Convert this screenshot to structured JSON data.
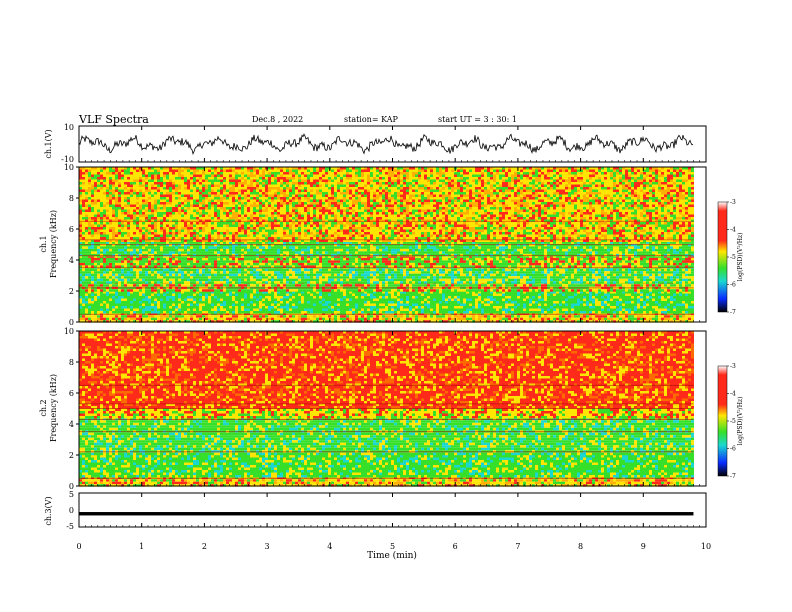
{
  "header": {
    "title": "VLF Spectra",
    "date": "Dec.8 , 2022",
    "station": "station= KAP",
    "start": "start UT = 3 : 30: 1"
  },
  "chart_data": [
    {
      "type": "line",
      "name": "ch1-waveform",
      "ylabel": "ch.1(V)",
      "ylim": [
        -10,
        10
      ],
      "yticks": [
        "10",
        "-10"
      ],
      "xlim": [
        0,
        10
      ],
      "note": "dense oscillating signal from t=0 to ~9.8 min"
    },
    {
      "type": "heatmap",
      "name": "ch1-spectrogram",
      "ylabel_top": "ch.1",
      "ylabel": "Frequency (kHz)",
      "ylim": [
        0,
        10
      ],
      "yticks": [
        "0",
        "2",
        "4",
        "6",
        "8",
        "10"
      ],
      "colorbar": {
        "ticks": [
          "-3",
          "-4",
          "-5",
          "-6",
          "-7"
        ],
        "label": "log(PSD)(V²/Hz)"
      },
      "bands": [
        {
          "from": 0,
          "to": 0.6,
          "level": "yellow-red"
        },
        {
          "from": 0.6,
          "to": 2.0,
          "level": "green"
        },
        {
          "from": 2.0,
          "to": 2.6,
          "level": "green-yellow"
        },
        {
          "from": 2.6,
          "to": 3.6,
          "level": "green-cyan"
        },
        {
          "from": 3.6,
          "to": 4.3,
          "level": "green-yellow"
        },
        {
          "from": 4.3,
          "to": 5.2,
          "level": "green"
        },
        {
          "from": 5.2,
          "to": 10,
          "level": "yellow-red"
        }
      ]
    },
    {
      "type": "heatmap",
      "name": "ch2-spectrogram",
      "ylabel_top": "ch.2",
      "ylabel": "Frequency (kHz)",
      "ylim": [
        0,
        10
      ],
      "yticks": [
        "0",
        "2",
        "4",
        "6",
        "8",
        "10"
      ],
      "colorbar": {
        "ticks": [
          "-3",
          "-4",
          "-5",
          "-6",
          "-7"
        ],
        "label": "log(PSD)(V²/Hz)"
      },
      "bands": [
        {
          "from": 0,
          "to": 0.6,
          "level": "yellow-red"
        },
        {
          "from": 0.6,
          "to": 2.0,
          "level": "green"
        },
        {
          "from": 2.0,
          "to": 3.6,
          "level": "green"
        },
        {
          "from": 3.6,
          "to": 4.4,
          "level": "green"
        },
        {
          "from": 4.4,
          "to": 5.0,
          "level": "yellow"
        },
        {
          "from": 5.0,
          "to": 10,
          "level": "red"
        }
      ]
    },
    {
      "type": "line",
      "name": "ch3-waveform",
      "ylabel": "ch.3(V)",
      "ylim": [
        -5,
        5
      ],
      "yticks": [
        "5",
        "0",
        "-5"
      ],
      "xlabel": "Time (min)",
      "xlim": [
        0,
        10
      ],
      "xticks": [
        "0",
        "1",
        "2",
        "3",
        "4",
        "5",
        "6",
        "7",
        "8",
        "9",
        "10"
      ],
      "note": "flat thick band near -1 V from t=0 to ~9.8 min"
    }
  ],
  "colors": {
    "red": "#ff2a1a",
    "yellow": "#ffe600",
    "green": "#36e02a",
    "cyan": "#1ad8d0",
    "blue": "#0a2cff"
  }
}
